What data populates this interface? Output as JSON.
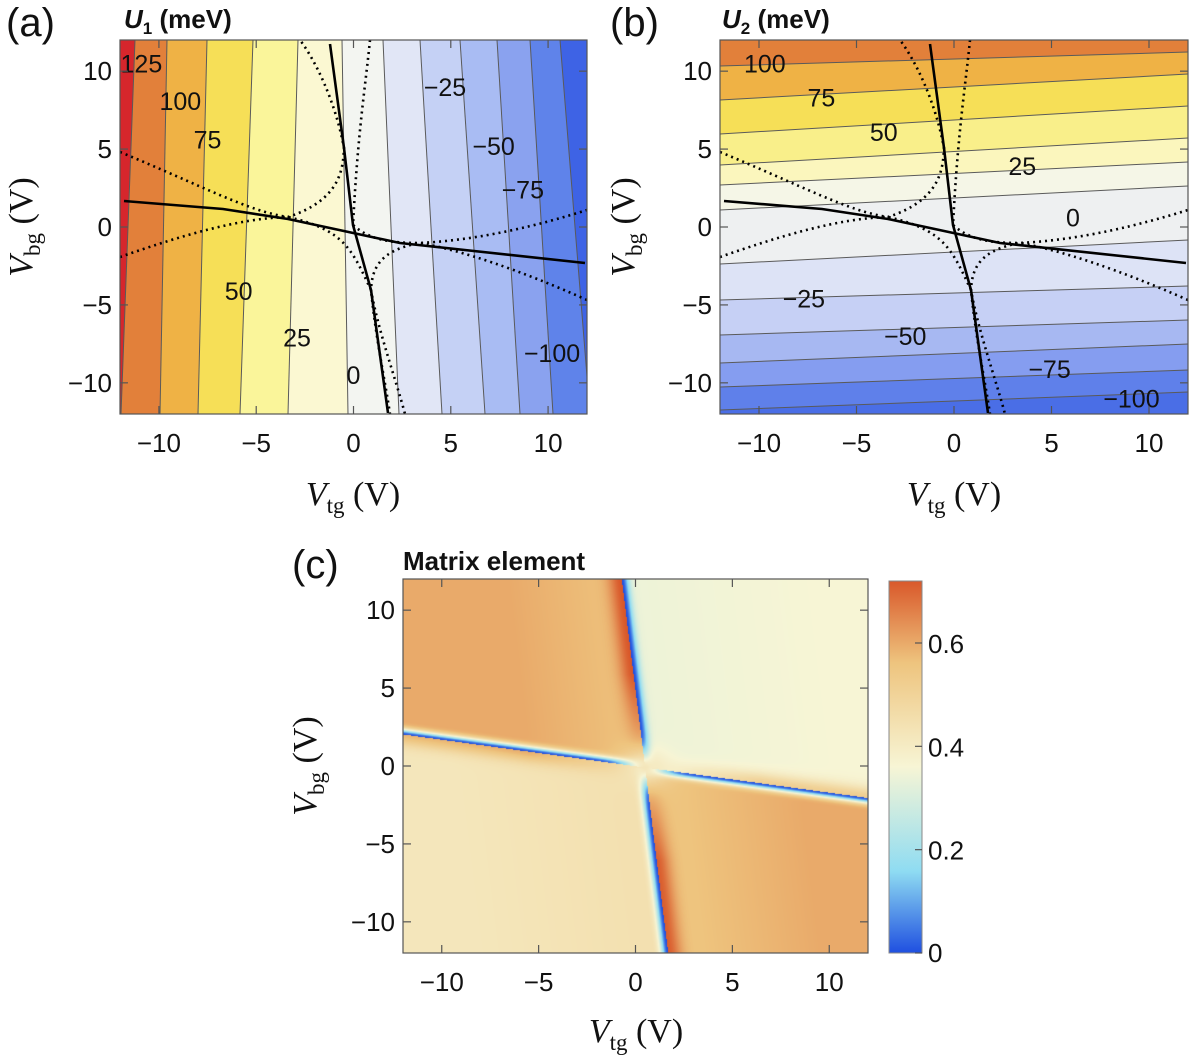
{
  "chart_data": [
    {
      "panel_label": "(a)",
      "type": "contour",
      "title_var": "U",
      "title_sub": "1",
      "title_unit": "(meV)",
      "x_label": "V",
      "x_sub": "tg",
      "x_unit": "(V)",
      "y_label": "V",
      "y_sub": "bg",
      "y_unit": "(V)",
      "xlim": [
        -12,
        12
      ],
      "ylim": [
        -12,
        12
      ],
      "x_ticks": [
        -10,
        -5,
        0,
        5,
        10
      ],
      "y_ticks": [
        -10,
        -5,
        0,
        5,
        10
      ],
      "x_tick_labels": [
        "−10",
        "−5",
        "0",
        "5",
        "10"
      ],
      "y_tick_labels": [
        "−10",
        "−5",
        "0",
        "5",
        "10"
      ],
      "contour_levels": [
        125,
        100,
        75,
        50,
        25,
        0,
        -25,
        -50,
        -75,
        -100
      ],
      "contour_labels": [
        {
          "text": "125",
          "x": -10.9,
          "y": 10.5
        },
        {
          "text": "100",
          "x": -8.9,
          "y": 8.1
        },
        {
          "text": "75",
          "x": -7.5,
          "y": 5.6
        },
        {
          "text": "50",
          "x": -5.9,
          "y": -4.1
        },
        {
          "text": "25",
          "x": -2.9,
          "y": -7.1
        },
        {
          "text": "0",
          "x": 0.0,
          "y": -9.5
        },
        {
          "text": "−25",
          "x": 4.7,
          "y": 9.0
        },
        {
          "text": "−50",
          "x": 7.2,
          "y": 5.2
        },
        {
          "text": "−75",
          "x": 8.7,
          "y": 2.4
        },
        {
          "text": "−100",
          "x": 10.2,
          "y": -8.1
        }
      ]
    },
    {
      "panel_label": "(b)",
      "type": "contour",
      "title_var": "U",
      "title_sub": "2",
      "title_unit": "(meV)",
      "x_label": "V",
      "x_sub": "tg",
      "x_unit": "(V)",
      "y_label": "V",
      "y_sub": "bg",
      "y_unit": "(V)",
      "xlim": [
        -12,
        12
      ],
      "ylim": [
        -12,
        12
      ],
      "x_ticks": [
        -10,
        -5,
        0,
        5,
        10
      ],
      "y_ticks": [
        -10,
        -5,
        0,
        5,
        10
      ],
      "x_tick_labels": [
        "−10",
        "−5",
        "0",
        "5",
        "10"
      ],
      "y_tick_labels": [
        "−10",
        "−5",
        "0",
        "5",
        "10"
      ],
      "contour_levels": [
        100,
        75,
        50,
        25,
        0,
        -25,
        -50,
        -75,
        -100
      ],
      "contour_labels": [
        {
          "text": "100",
          "x": -9.7,
          "y": 10.5
        },
        {
          "text": "75",
          "x": -6.8,
          "y": 8.3
        },
        {
          "text": "50",
          "x": -3.6,
          "y": 6.1
        },
        {
          "text": "25",
          "x": 3.5,
          "y": 3.9
        },
        {
          "text": "0",
          "x": 6.1,
          "y": 0.6
        },
        {
          "text": "−25",
          "x": -7.7,
          "y": -4.6
        },
        {
          "text": "−50",
          "x": -2.5,
          "y": -7.0
        },
        {
          "text": "−75",
          "x": 4.9,
          "y": -9.1
        },
        {
          "text": "−100",
          "x": 9.1,
          "y": -11.0
        }
      ]
    },
    {
      "panel_label": "(c)",
      "type": "heatmap",
      "title": "Matrix element",
      "x_label": "V",
      "x_sub": "tg",
      "x_unit": "(V)",
      "y_label": "V",
      "y_sub": "bg",
      "y_unit": "(V)",
      "xlim": [
        -12,
        12
      ],
      "ylim": [
        -12,
        12
      ],
      "x_ticks": [
        -10,
        -5,
        0,
        5,
        10
      ],
      "y_ticks": [
        -10,
        -5,
        0,
        5,
        10
      ],
      "x_tick_labels": [
        "−10",
        "−5",
        "0",
        "5",
        "10"
      ],
      "y_tick_labels": [
        "−10",
        "−5",
        "0",
        "5",
        "10"
      ],
      "colorbar_range": [
        0,
        0.72
      ],
      "colorbar_ticks": [
        0,
        0.2,
        0.4,
        0.6
      ],
      "colorbar_tick_labels": [
        "0",
        "0.2",
        "0.4",
        "0.6"
      ],
      "colormap": [
        "#1f4fe0",
        "#8fdcf2",
        "#f7f5d5",
        "#eec47e",
        "#d9582a"
      ]
    }
  ]
}
